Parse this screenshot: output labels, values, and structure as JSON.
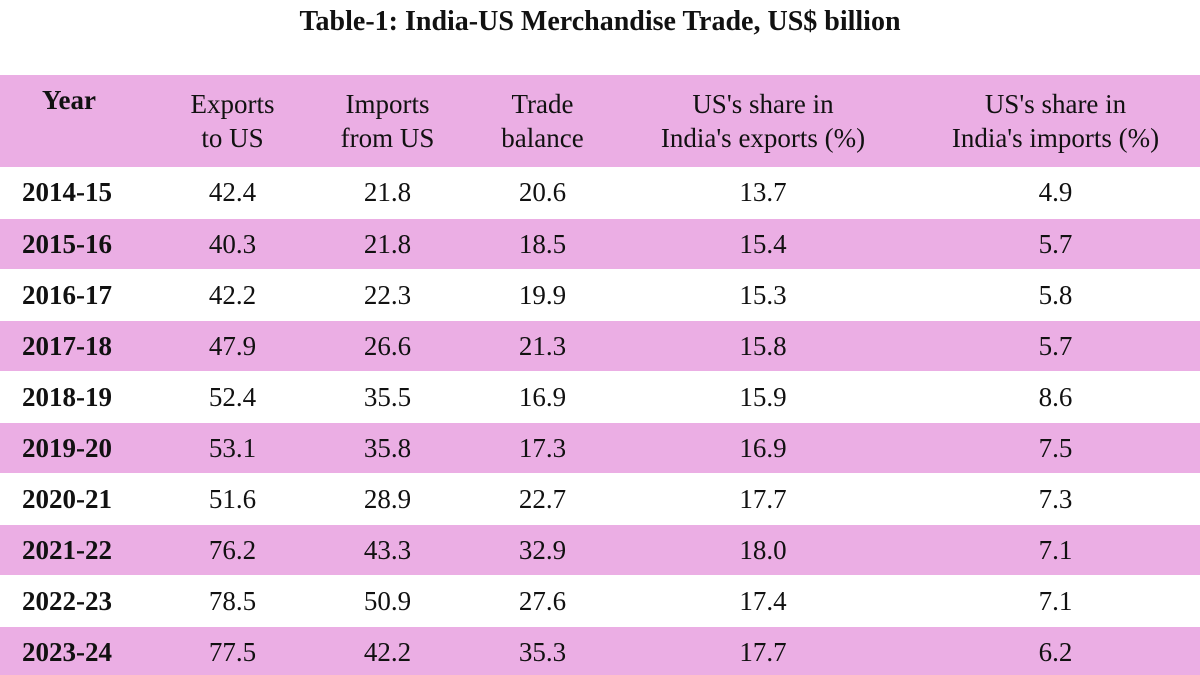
{
  "title": "Table-1: India-US Merchandise Trade, US$ billion",
  "columns": [
    "Year",
    "Exports to US",
    "Imports from US",
    "Trade balance",
    "US's share in India's exports (%)",
    "US's share in India's imports (%)"
  ],
  "header": {
    "year": "Year",
    "exports_1": "Exports",
    "exports_2": "to US",
    "imports_1": "Imports",
    "imports_2": "from US",
    "balance_1": "Trade",
    "balance_2": "balance",
    "share_exp_1": "US's share in",
    "share_exp_2": "India's exports (%)",
    "share_imp_1": "US's share in",
    "share_imp_2": "India's imports (%)"
  },
  "rows": [
    [
      "2014-15",
      "42.4",
      "21.8",
      "20.6",
      "13.7",
      "4.9"
    ],
    [
      "2015-16",
      "40.3",
      "21.8",
      "18.5",
      "15.4",
      "5.7"
    ],
    [
      "2016-17",
      "42.2",
      "22.3",
      "19.9",
      "15.3",
      "5.8"
    ],
    [
      "2017-18",
      "47.9",
      "26.6",
      "21.3",
      "15.8",
      "5.7"
    ],
    [
      "2018-19",
      "52.4",
      "35.5",
      "16.9",
      "15.9",
      "8.6"
    ],
    [
      "2019-20",
      "53.1",
      "35.8",
      "17.3",
      "16.9",
      "7.5"
    ],
    [
      "2020-21",
      "51.6",
      "28.9",
      "22.7",
      "17.7",
      "7.3"
    ],
    [
      "2021-22",
      "76.2",
      "43.3",
      "32.9",
      "18.0",
      "7.1"
    ],
    [
      "2022-23",
      "78.5",
      "50.9",
      "27.6",
      "17.4",
      "7.1"
    ],
    [
      "2023-24",
      "77.5",
      "42.2",
      "35.3",
      "17.7",
      "6.2"
    ]
  ],
  "colors": {
    "row_highlight": "#ebaee4",
    "row_plain": "#ffffff",
    "text": "#111111"
  }
}
